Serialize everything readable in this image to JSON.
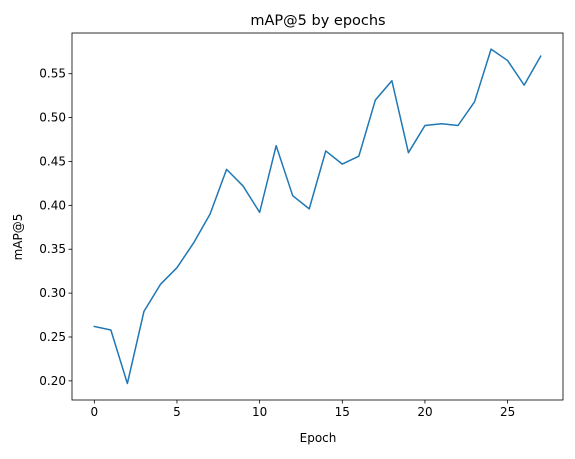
{
  "chart_data": {
    "type": "line",
    "title": "mAP@5 by epochs",
    "xlabel": "Epoch",
    "ylabel": "mAP@5",
    "xlim": [
      -1.35,
      28.35
    ],
    "ylim": [
      0.1782,
      0.5964
    ],
    "xticks": [
      0,
      5,
      10,
      15,
      20,
      25
    ],
    "yticks": [
      0.2,
      0.25,
      0.3,
      0.35,
      0.4,
      0.45,
      0.5,
      0.55
    ],
    "xtick_labels": [
      "0",
      "5",
      "10",
      "15",
      "20",
      "25"
    ],
    "ytick_labels": [
      "0.20",
      "0.25",
      "0.30",
      "0.35",
      "0.40",
      "0.45",
      "0.50",
      "0.55"
    ],
    "grid": false,
    "legend": "none",
    "series": [
      {
        "color": "#1f77b4",
        "x": [
          0,
          1,
          2,
          3,
          4,
          5,
          6,
          7,
          8,
          9,
          10,
          11,
          12,
          13,
          14,
          15,
          16,
          17,
          18,
          19,
          20,
          21,
          22,
          23,
          24,
          25,
          26,
          27
        ],
        "values": [
          0.262,
          0.258,
          0.197,
          0.279,
          0.31,
          0.329,
          0.357,
          0.39,
          0.441,
          0.422,
          0.392,
          0.468,
          0.411,
          0.396,
          0.462,
          0.447,
          0.456,
          0.52,
          0.542,
          0.46,
          0.491,
          0.493,
          0.491,
          0.518,
          0.578,
          0.565,
          0.537,
          0.57
        ]
      }
    ]
  }
}
